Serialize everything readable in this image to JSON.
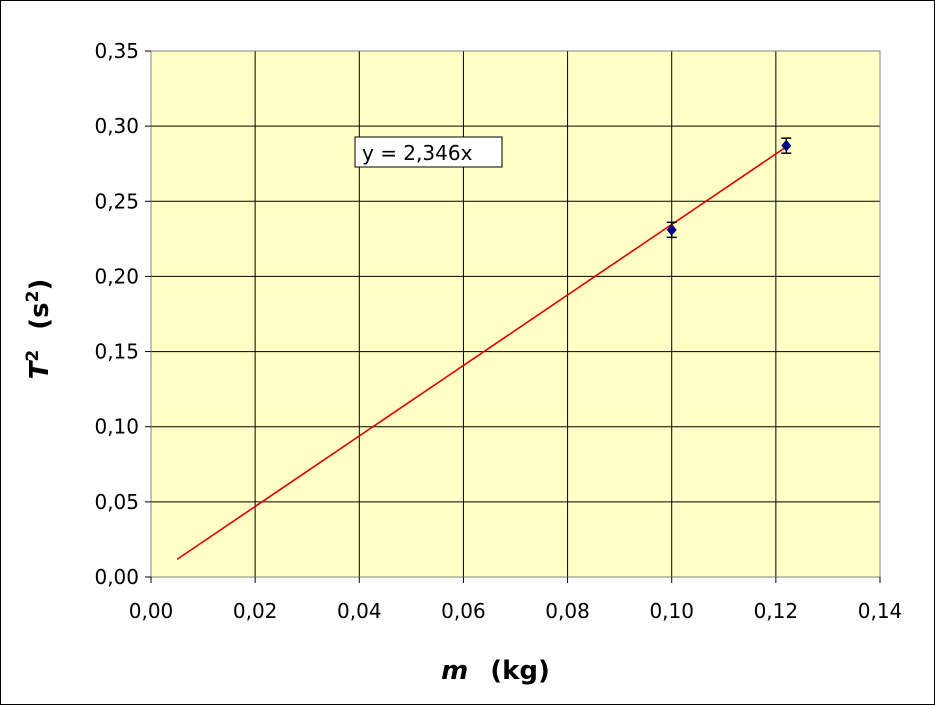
{
  "chart_data": {
    "type": "scatter",
    "xlabel": {
      "var": "m",
      "unit": "(kg)"
    },
    "ylabel": {
      "var": "T",
      "sup": "2",
      "unit": "(s",
      "unit_sup": "2",
      "unit_close": ")"
    },
    "xlim": [
      0,
      0.14
    ],
    "ylim": [
      0,
      0.35
    ],
    "x_ticks": [
      "0,00",
      "0,02",
      "0,04",
      "0,06",
      "0,08",
      "0,10",
      "0,12",
      "0,14"
    ],
    "y_ticks": [
      "0,00",
      "0,05",
      "0,10",
      "0,15",
      "0,20",
      "0,25",
      "0,30",
      "0,35"
    ],
    "grid": true,
    "plot_background": "#FFFFC6",
    "series": [
      {
        "marker_color": "#000080",
        "points": [
          {
            "x": 0.1,
            "y": 0.231,
            "err": 0.005
          },
          {
            "x": 0.122,
            "y": 0.287,
            "err": 0.005
          }
        ]
      }
    ],
    "trendline": {
      "color": "#DD0000",
      "slope": 2.346,
      "x_start": 0.005,
      "x_end": 0.122,
      "equation": "y = 2,346x"
    }
  }
}
